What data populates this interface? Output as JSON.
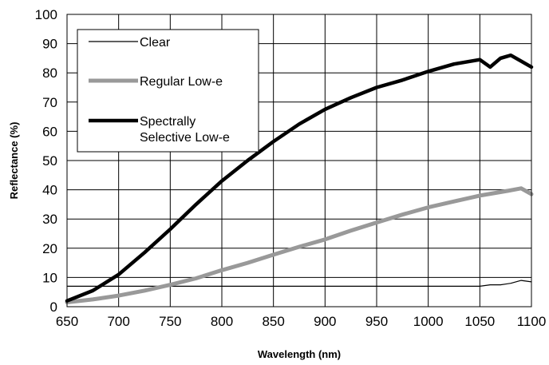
{
  "chart_data": {
    "type": "line",
    "title": "",
    "xlabel": "Wavelength (nm)",
    "ylabel": "Reflectance (%)",
    "xlim": [
      650,
      1100
    ],
    "ylim": [
      0,
      100
    ],
    "x_ticks": [
      "650",
      "700",
      "750",
      "800",
      "850",
      "900",
      "950",
      "1000",
      "1050",
      "1100"
    ],
    "y_ticks": [
      "0",
      "10",
      "20",
      "30",
      "40",
      "50",
      "60",
      "70",
      "80",
      "90",
      "100"
    ],
    "grid": true,
    "legend_position": "top-left",
    "series": [
      {
        "name": "Clear",
        "color": "#000000",
        "line_style": "thin",
        "x": [
          650,
          700,
          750,
          800,
          850,
          900,
          950,
          1000,
          1050,
          1060,
          1070,
          1080,
          1090,
          1100
        ],
        "y": [
          7,
          7,
          7,
          7,
          7,
          7,
          7,
          7,
          7,
          7.5,
          7.5,
          8,
          9,
          8.5
        ]
      },
      {
        "name": "Regular Low-e",
        "color": "#999999",
        "line_style": "thick",
        "x": [
          650,
          675,
          700,
          725,
          750,
          775,
          800,
          825,
          850,
          875,
          900,
          925,
          950,
          975,
          1000,
          1025,
          1050,
          1075,
          1090,
          1100
        ],
        "y": [
          1.5,
          2.5,
          3.8,
          5.5,
          7.5,
          9.7,
          12.5,
          15,
          17.8,
          20.5,
          23,
          26,
          28.8,
          31.5,
          34,
          36,
          38,
          39.5,
          40.5,
          38.5
        ]
      },
      {
        "name": "Spectrally Selective Low-e",
        "color": "#000000",
        "line_style": "thickest",
        "x": [
          650,
          675,
          700,
          725,
          750,
          775,
          800,
          825,
          850,
          875,
          900,
          925,
          950,
          975,
          1000,
          1025,
          1050,
          1060,
          1070,
          1080,
          1090,
          1100
        ],
        "y": [
          2,
          5.5,
          11,
          18.5,
          26.5,
          35,
          43,
          50,
          56.5,
          62.5,
          67.5,
          71.5,
          75,
          77.5,
          80.5,
          83,
          84.5,
          82,
          85,
          86,
          84,
          82
        ]
      }
    ]
  }
}
